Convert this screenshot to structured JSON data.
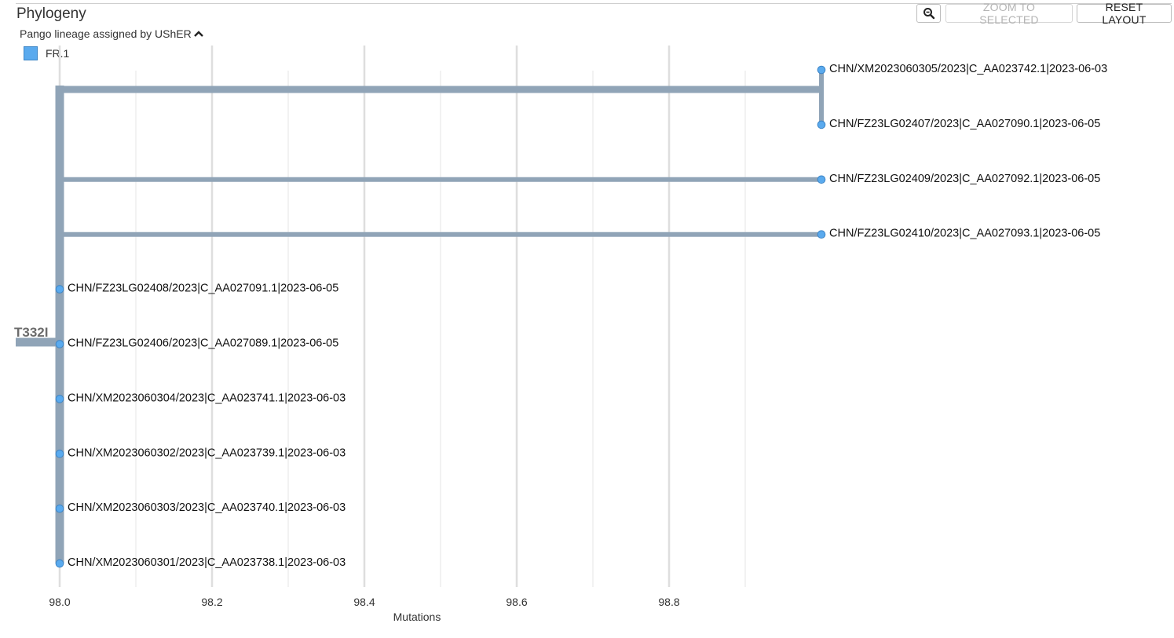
{
  "panel": {
    "title": "Phylogeny",
    "colour_by_label": "Pango lineage assigned by UShER",
    "toolbar": {
      "zoom_icon": "magnifier-icon",
      "zoom_to_selected_label": "ZOOM TO SELECTED",
      "reset_layout_label": "RESET LAYOUT"
    },
    "legend": [
      {
        "label": "FR.1",
        "color": "#5aaaee"
      }
    ]
  },
  "tree": {
    "branch_color": "#90a4b7",
    "node_color": "#5aaaee",
    "node_stroke": "#3d85c6",
    "root_branch_label": "T332I",
    "x_axis": {
      "title": "Mutations",
      "ticks": [
        98.0,
        98.2,
        98.4,
        98.6,
        98.8
      ],
      "tick_labels": [
        "98.0",
        "98.2",
        "98.4",
        "98.6",
        "98.8"
      ],
      "min_grid": 97.9,
      "max_grid": 98.9,
      "minor_step": 0.1
    },
    "root_mutations": 98.0,
    "clades": [
      {
        "mutations": 99.0,
        "leaves": [
          {
            "label": "CHN/XM2023060305/2023|C_AA023742.1|2023-06-03",
            "mutations": 99.0
          },
          {
            "label": "CHN/FZ23LG02407/2023|C_AA027090.1|2023-06-05",
            "mutations": 99.0
          }
        ]
      },
      {
        "mutations": 99.0,
        "leaves": [
          {
            "label": "CHN/FZ23LG02409/2023|C_AA027092.1|2023-06-05",
            "mutations": 99.0
          }
        ]
      },
      {
        "mutations": 99.0,
        "leaves": [
          {
            "label": "CHN/FZ23LG02410/2023|C_AA027093.1|2023-06-05",
            "mutations": 99.0
          }
        ]
      },
      {
        "mutations": 98.0,
        "leaves": [
          {
            "label": "CHN/FZ23LG02408/2023|C_AA027091.1|2023-06-05",
            "mutations": 98.0
          }
        ]
      },
      {
        "mutations": 98.0,
        "leaves": [
          {
            "label": "CHN/FZ23LG02406/2023|C_AA027089.1|2023-06-05",
            "mutations": 98.0
          }
        ]
      },
      {
        "mutations": 98.0,
        "leaves": [
          {
            "label": "CHN/XM2023060304/2023|C_AA023741.1|2023-06-03",
            "mutations": 98.0
          }
        ]
      },
      {
        "mutations": 98.0,
        "leaves": [
          {
            "label": "CHN/XM2023060302/2023|C_AA023739.1|2023-06-03",
            "mutations": 98.0
          }
        ]
      },
      {
        "mutations": 98.0,
        "leaves": [
          {
            "label": "CHN/XM2023060303/2023|C_AA023740.1|2023-06-03",
            "mutations": 98.0
          }
        ]
      },
      {
        "mutations": 98.0,
        "leaves": [
          {
            "label": "CHN/XM2023060301/2023|C_AA023738.1|2023-06-03",
            "mutations": 98.0
          }
        ]
      }
    ]
  }
}
